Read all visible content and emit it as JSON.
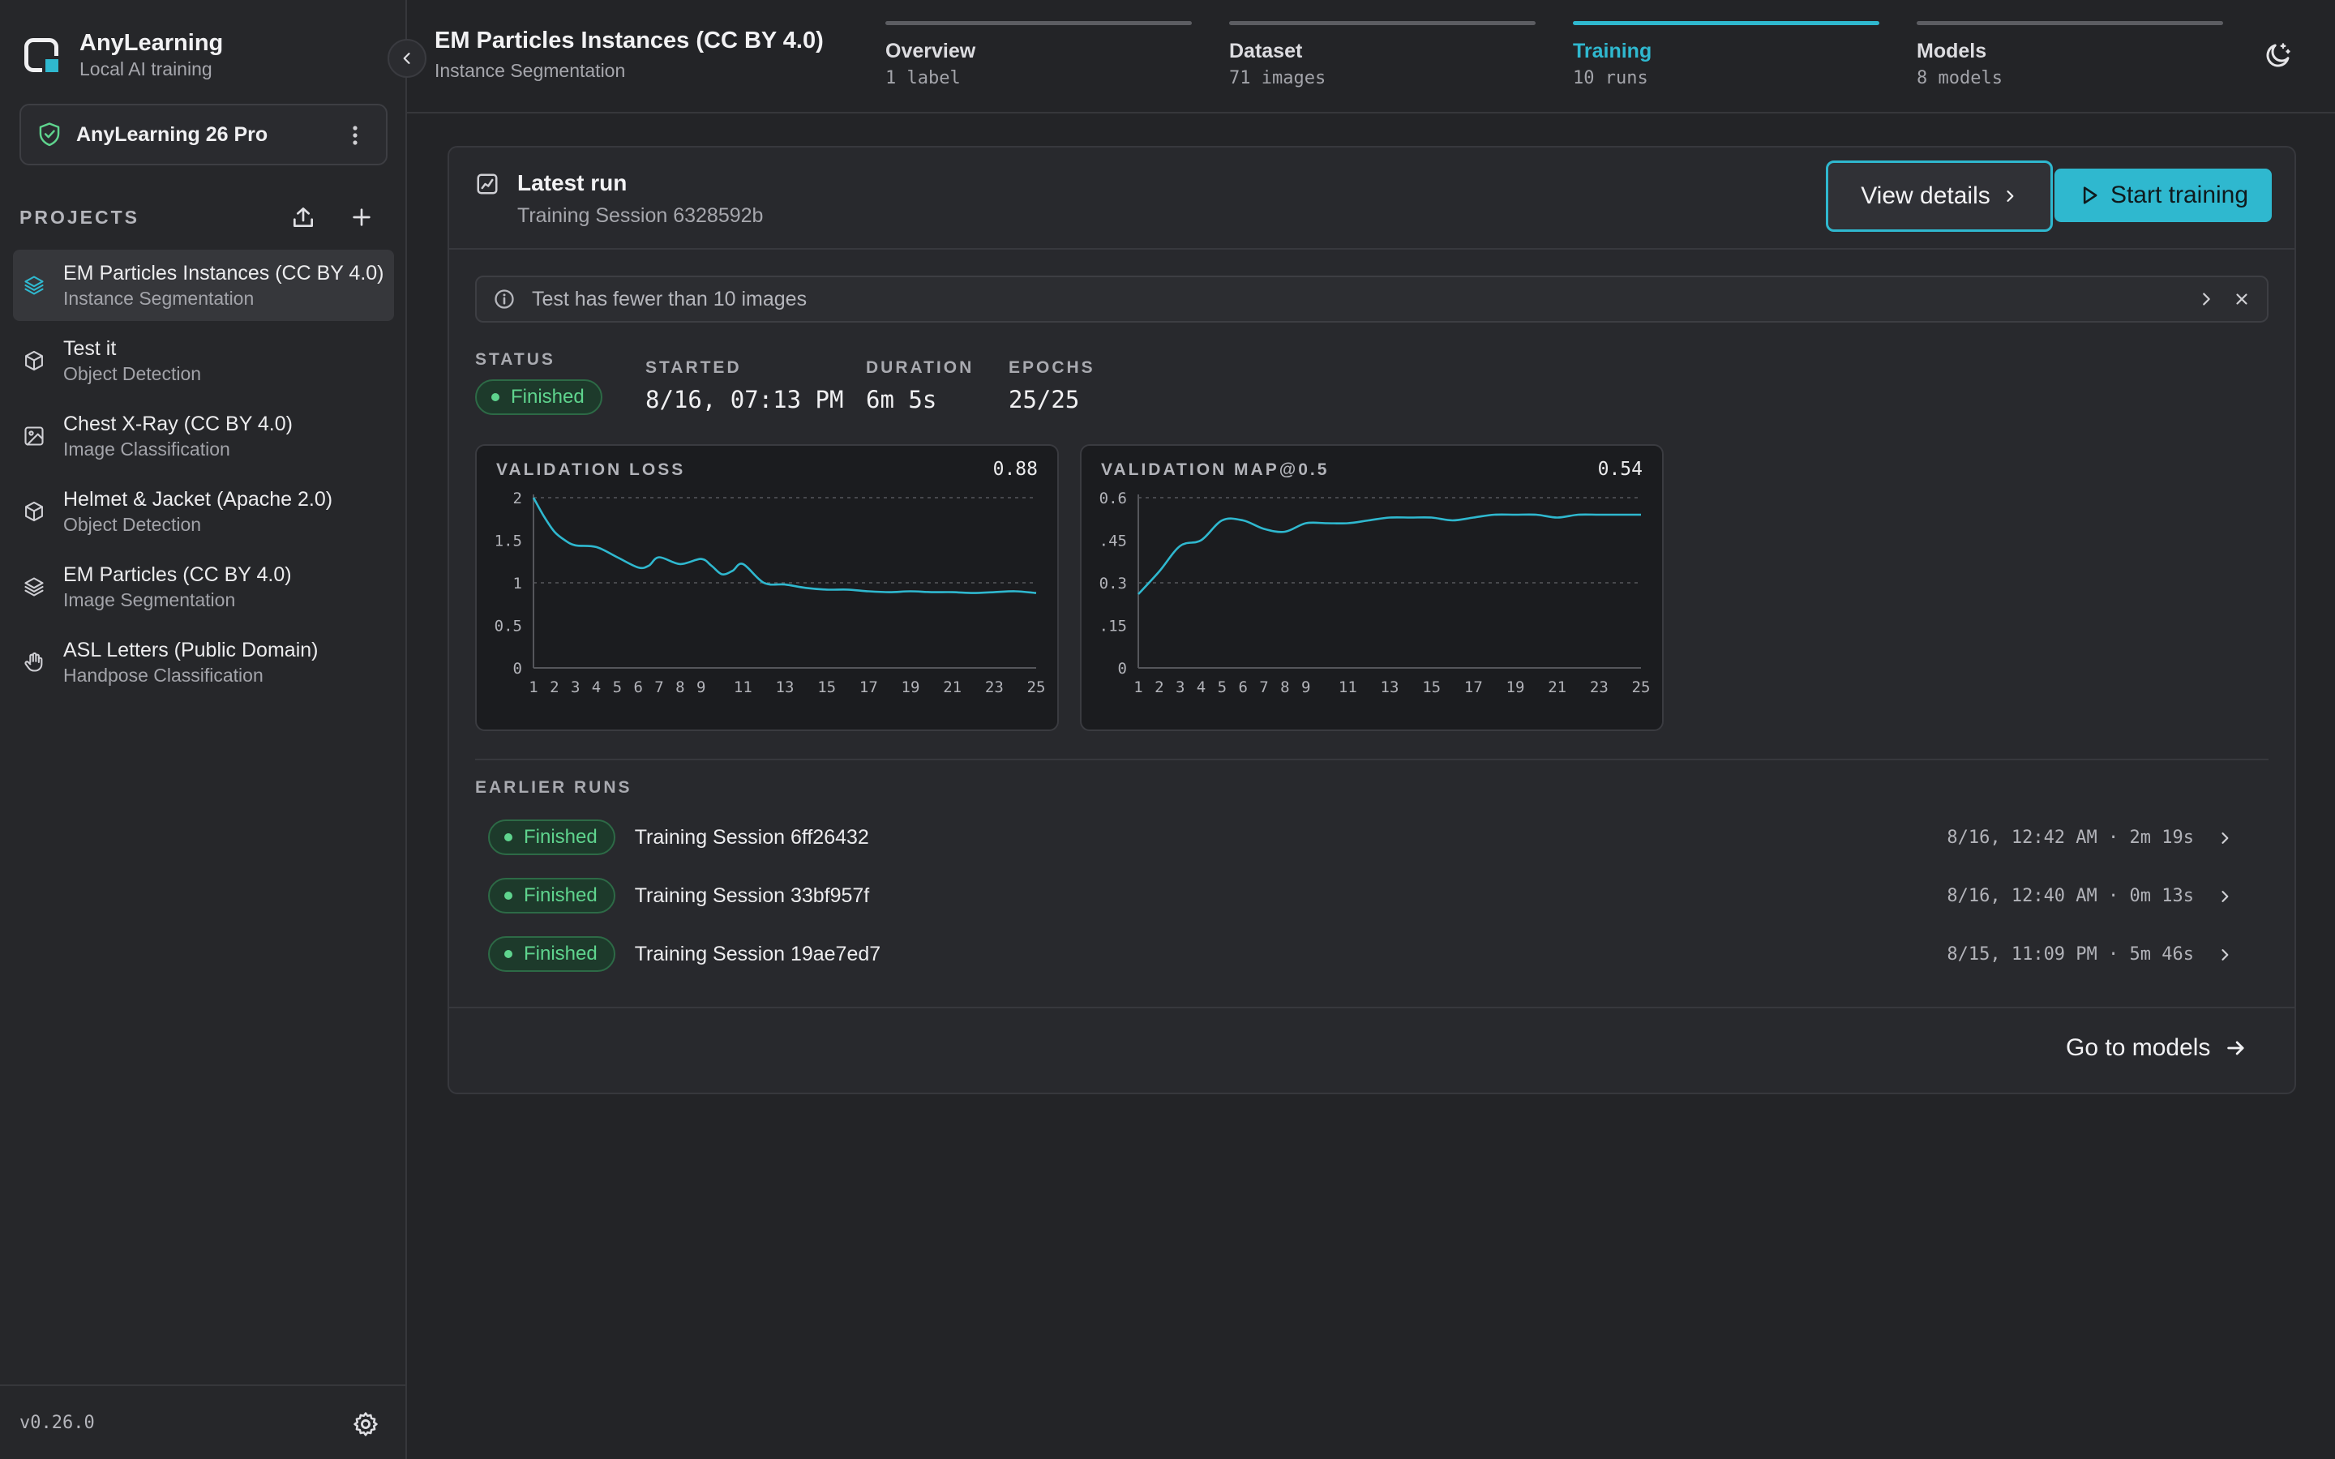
{
  "app": {
    "name": "AnyLearning",
    "subtitle": "Local AI training"
  },
  "license": {
    "label": "AnyLearning 26 Pro"
  },
  "sidebar": {
    "projects_title": "PROJECTS",
    "projects": [
      {
        "name": "EM Particles Instances (CC BY 4.0)",
        "type": "Instance Segmentation",
        "icon": "layers-icon",
        "active": true
      },
      {
        "name": "Test it",
        "type": "Object Detection",
        "icon": "cube-icon",
        "active": false
      },
      {
        "name": "Chest X-Ray (CC BY 4.0)",
        "type": "Image Classification",
        "icon": "image-icon",
        "active": false
      },
      {
        "name": "Helmet & Jacket (Apache 2.0)",
        "type": "Object Detection",
        "icon": "cube-icon",
        "active": false
      },
      {
        "name": "EM Particles (CC BY 4.0)",
        "type": "Image Segmentation",
        "icon": "layers-icon",
        "active": false
      },
      {
        "name": "ASL Letters (Public Domain)",
        "type": "Handpose Classification",
        "icon": "hand-icon",
        "active": false
      }
    ],
    "version": "v0.26.0"
  },
  "header": {
    "title": "EM Particles Instances (CC BY 4.0)",
    "subtitle": "Instance Segmentation",
    "tabs": [
      {
        "label": "Overview",
        "sub": "1 label",
        "active": false
      },
      {
        "label": "Dataset",
        "sub": "71 images",
        "active": false
      },
      {
        "label": "Training",
        "sub": "10 runs",
        "active": true
      },
      {
        "label": "Models",
        "sub": "8 models",
        "active": false
      }
    ]
  },
  "latest": {
    "title": "Latest run",
    "session": "Training Session 6328592b",
    "view_details": "View details",
    "start_training": "Start training",
    "notice": "Test has fewer than 10 images",
    "status_label": "STATUS",
    "status": "Finished",
    "started_label": "STARTED",
    "started": "8/16, 07:13 PM",
    "duration_label": "DURATION",
    "duration": "6m 5s",
    "epochs_label": "EPOCHS",
    "epochs": "25/25"
  },
  "chart_data": [
    {
      "type": "line",
      "title": "VALIDATION LOSS",
      "last_value": "0.88",
      "x": [
        1,
        1.5,
        2,
        2.5,
        3,
        4,
        5,
        6,
        6.5,
        7,
        8,
        9,
        9.5,
        10,
        10.5,
        11,
        12,
        13,
        14,
        15,
        16,
        17,
        18,
        19,
        20,
        21,
        22,
        23,
        24,
        25
      ],
      "values": [
        2.0,
        1.78,
        1.6,
        1.5,
        1.44,
        1.42,
        1.3,
        1.18,
        1.2,
        1.3,
        1.22,
        1.28,
        1.2,
        1.1,
        1.14,
        1.22,
        1.0,
        0.98,
        0.94,
        0.92,
        0.92,
        0.9,
        0.89,
        0.9,
        0.89,
        0.89,
        0.88,
        0.89,
        0.9,
        0.88
      ],
      "x_ticks": [
        "1",
        "2",
        "3",
        "4",
        "5",
        "6",
        "7",
        "8",
        "9",
        "11",
        "13",
        "15",
        "17",
        "19",
        "21",
        "23",
        "25"
      ],
      "y_ticks": [
        "0",
        "0.5",
        "1",
        "1.5",
        "2"
      ],
      "ylim": [
        0,
        2
      ],
      "xlim": [
        1,
        25
      ],
      "grid_dashed_at": [
        1,
        2
      ]
    },
    {
      "type": "line",
      "title": "VALIDATION MAP@0.5",
      "last_value": "0.54",
      "x": [
        1,
        2,
        3,
        4,
        5,
        6,
        7,
        8,
        9,
        10,
        11,
        12,
        13,
        14,
        15,
        16,
        17,
        18,
        19,
        20,
        21,
        22,
        23,
        24,
        25
      ],
      "values": [
        0.26,
        0.34,
        0.43,
        0.45,
        0.52,
        0.52,
        0.49,
        0.48,
        0.51,
        0.51,
        0.51,
        0.52,
        0.53,
        0.53,
        0.53,
        0.52,
        0.53,
        0.54,
        0.54,
        0.54,
        0.53,
        0.54,
        0.54,
        0.54,
        0.54
      ],
      "x_ticks": [
        "1",
        "2",
        "3",
        "4",
        "5",
        "6",
        "7",
        "8",
        "9",
        "11",
        "13",
        "15",
        "17",
        "19",
        "21",
        "23",
        "25"
      ],
      "y_ticks": [
        "0",
        ".15",
        "0.3",
        ".45",
        "0.6"
      ],
      "ylim": [
        0,
        0.6
      ],
      "xlim": [
        1,
        25
      ],
      "grid_dashed_at": [
        0.3,
        0.6
      ]
    }
  ],
  "earlier": {
    "title": "EARLIER RUNS",
    "runs": [
      {
        "status": "Finished",
        "name": "Training Session 6ff26432",
        "meta": "8/16, 12:42 AM · 2m 19s"
      },
      {
        "status": "Finished",
        "name": "Training Session 33bf957f",
        "meta": "8/16, 12:40 AM · 0m 13s"
      },
      {
        "status": "Finished",
        "name": "Training Session 19ae7ed7",
        "meta": "8/15, 11:09 PM · 5m 46s"
      }
    ]
  },
  "footer": {
    "go_models": "Go to models"
  },
  "colors": {
    "accent": "#2fb8cf",
    "success": "#5fd48e"
  }
}
